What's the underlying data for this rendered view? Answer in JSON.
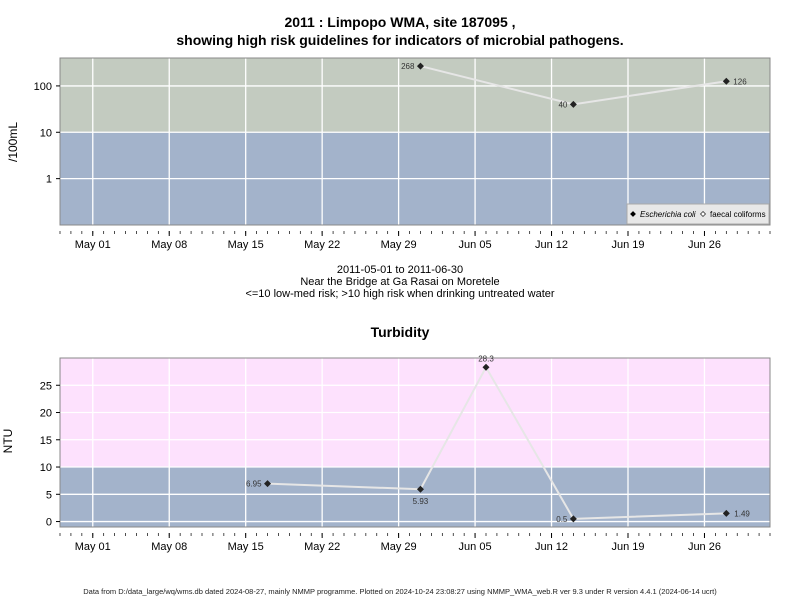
{
  "header": {
    "title_line1": "2011 : Limpopo WMA, site 187095 ,",
    "title_line2": "showing high risk guidelines for indicators of microbial pathogens."
  },
  "colors": {
    "high_risk_band": "#c3cbc0",
    "low_risk_band": "#a3b3cb",
    "turbidity_high_band": "#fde1fd",
    "series_line": "#e6e6e6",
    "marker": "#222222"
  },
  "caption": {
    "date_range": "2011-05-01 to 2011-06-30",
    "location": "Near the Bridge at Ga Rasai on Moretele",
    "guideline": "<=10 low-med risk; >10 high risk when drinking untreated water"
  },
  "footer": {
    "text": "Data from D:/data_large/wq/wms.db dated 2024-08-27, mainly NMMP programme. Plotted on 2024-10-24 23:08:27 using NMMP_WMA_web.R ver 9.3 under R version 4.4.1 (2024-06-14 ucrt)"
  },
  "chart_data": [
    {
      "type": "line",
      "name": "microbial",
      "ylabel": "/100mL",
      "yscale": "log",
      "ylim": [
        0.1,
        400
      ],
      "y_ticks": [
        1,
        10,
        100
      ],
      "y_tick_labels": [
        "1",
        "10",
        "100"
      ],
      "threshold": 10,
      "xlim": [
        "2011-04-28",
        "2011-07-02"
      ],
      "x_ticks": [
        "2011-05-01",
        "2011-05-08",
        "2011-05-15",
        "2011-05-22",
        "2011-05-29",
        "2011-06-05",
        "2011-06-12",
        "2011-06-19",
        "2011-06-26"
      ],
      "x_tick_labels": [
        "May 01",
        "May 08",
        "May 15",
        "May 22",
        "May 29",
        "Jun 05",
        "Jun 12",
        "Jun 19",
        "Jun 26"
      ],
      "grid": true,
      "legend_position": "bottom-right",
      "legend": [
        {
          "label": "Escherichia coli",
          "italic": true,
          "marker": "filled-diamond"
        },
        {
          "label": "faecal coliforms",
          "italic": false,
          "marker": "open-diamond"
        }
      ],
      "series": [
        {
          "name": "Escherichia coli",
          "x": [
            "2011-05-31",
            "2011-06-14",
            "2011-06-28"
          ],
          "y": [
            268,
            40,
            126
          ],
          "labels": [
            "268",
            "40",
            "126"
          ]
        }
      ]
    },
    {
      "type": "line",
      "name": "turbidity",
      "title": "Turbidity",
      "ylabel": "NTU",
      "yscale": "linear",
      "ylim": [
        -1,
        30
      ],
      "y_ticks": [
        0,
        5,
        10,
        15,
        20,
        25
      ],
      "y_tick_labels": [
        "0",
        "5",
        "10",
        "15",
        "20",
        "25"
      ],
      "threshold": 10,
      "xlim": [
        "2011-04-28",
        "2011-07-02"
      ],
      "x_ticks": [
        "2011-05-01",
        "2011-05-08",
        "2011-05-15",
        "2011-05-22",
        "2011-05-29",
        "2011-06-05",
        "2011-06-12",
        "2011-06-19",
        "2011-06-26"
      ],
      "x_tick_labels": [
        "May 01",
        "May 08",
        "May 15",
        "May 22",
        "May 29",
        "Jun 05",
        "Jun 12",
        "Jun 19",
        "Jun 26"
      ],
      "grid": true,
      "series": [
        {
          "name": "Turbidity",
          "x": [
            "2011-05-17",
            "2011-05-31",
            "2011-06-06",
            "2011-06-14",
            "2011-06-28"
          ],
          "y": [
            6.95,
            5.93,
            28.3,
            0.5,
            1.49
          ],
          "labels": [
            "6.95",
            "5.93",
            "28.3",
            "0.5",
            "1.49"
          ]
        }
      ]
    }
  ]
}
